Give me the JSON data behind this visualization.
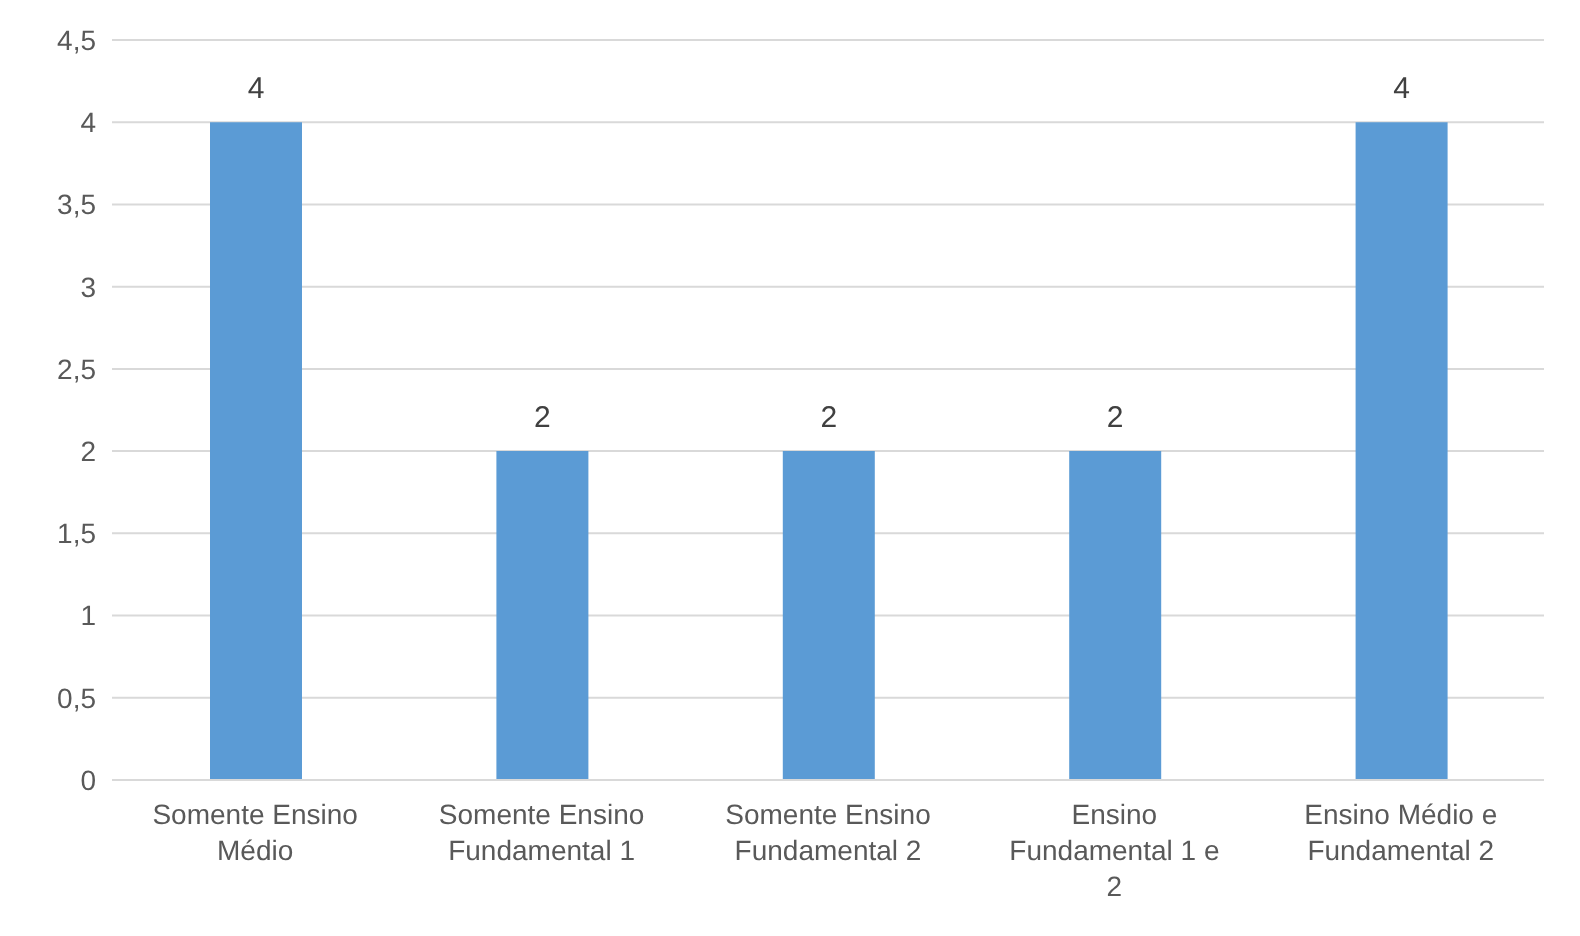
{
  "chart_data": {
    "type": "bar",
    "categories": [
      "Somente Ensino Médio",
      "Somente Ensino Fundamental 1",
      "Somente Ensino Fundamental 2",
      "Ensino Fundamental 1 e 2",
      "Ensino Médio e Fundamental 2"
    ],
    "values": [
      4,
      2,
      2,
      2,
      4
    ],
    "color": "#5b9bd5",
    "ylim": [
      0,
      4.5
    ],
    "yticks": [
      0,
      {
        "value": 0.5,
        "label": "0,5"
      },
      1,
      {
        "value": 1.5,
        "label": "1,5"
      },
      2,
      {
        "value": 2.5,
        "label": "2,5"
      },
      3,
      {
        "value": 3.5,
        "label": "3,5"
      },
      4,
      {
        "value": 4.5,
        "label": "4,5"
      }
    ],
    "grid": "y",
    "data_labels": true
  }
}
